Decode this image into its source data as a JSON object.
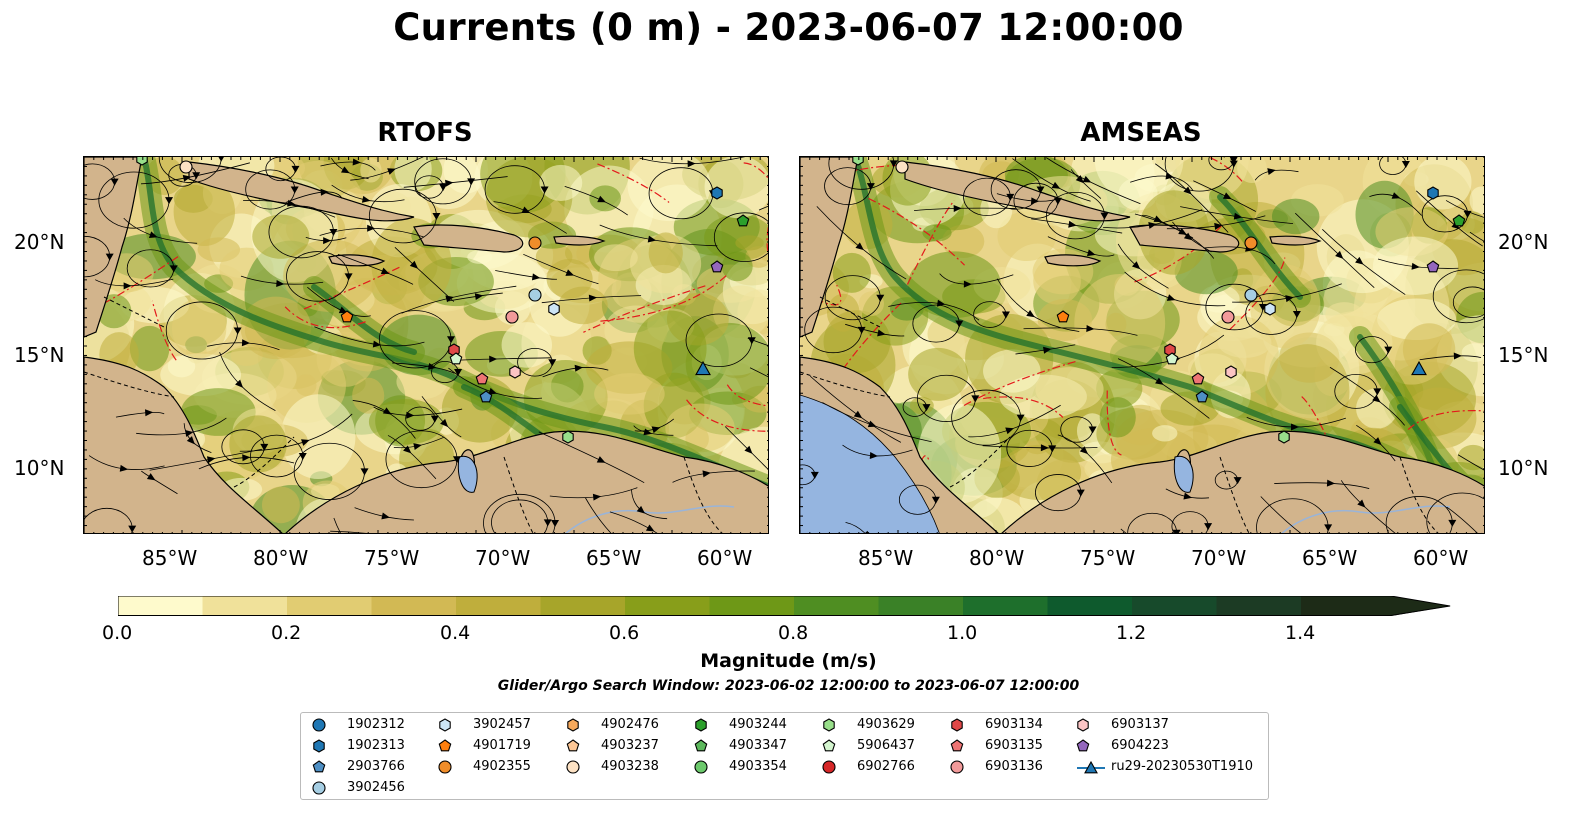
{
  "title": "Currents (0 m) - 2023-06-07 12:00:00",
  "panels": [
    {
      "name": "RTOFS"
    },
    {
      "name": "AMSEAS"
    }
  ],
  "axes": {
    "x_labels": [
      "85°W",
      "80°W",
      "75°W",
      "70°W",
      "65°W",
      "60°W"
    ],
    "y_labels": [
      "20°N",
      "15°N",
      "10°N"
    ]
  },
  "colorbar": {
    "ticks": [
      "0.0",
      "0.2",
      "0.4",
      "0.6",
      "0.8",
      "1.0",
      "1.2",
      "1.4"
    ],
    "label": "Magnitude (m/s)",
    "colors": [
      "#fefacc",
      "#f0e19a",
      "#e1cc72",
      "#d2b954",
      "#bfae3c",
      "#a7a52a",
      "#889e1a",
      "#6e9817",
      "#4f8e22",
      "#3a8127",
      "#1e6f2c",
      "#0e5a2d",
      "#174a2b",
      "#1c3b24",
      "#1d2b17"
    ]
  },
  "search_window": "Glider/Argo Search Window: 2023-06-02 12:00:00 to 2023-06-07 12:00:00",
  "legend": [
    {
      "label": "1902312",
      "marker": "circle",
      "color": "#1f77b4"
    },
    {
      "label": "1902313",
      "marker": "hexagon",
      "color": "#1f77b4"
    },
    {
      "label": "2903766",
      "marker": "pentagon",
      "color": "#4e8fc4"
    },
    {
      "label": "3902456",
      "marker": "circle",
      "color": "#a6cee3"
    },
    {
      "label": "3902457",
      "marker": "hexagon",
      "color": "#cde5f5"
    },
    {
      "label": "4901719",
      "marker": "pentagon",
      "color": "#ff7f0e"
    },
    {
      "label": "4902355",
      "marker": "circle",
      "color": "#f08d2a"
    },
    {
      "label": "4902476",
      "marker": "hexagon",
      "color": "#f6a95c"
    },
    {
      "label": "4903237",
      "marker": "pentagon",
      "color": "#fdc796"
    },
    {
      "label": "4903238",
      "marker": "circle",
      "color": "#fde2c4"
    },
    {
      "label": "4903244",
      "marker": "hexagon",
      "color": "#2ca02c"
    },
    {
      "label": "4903347",
      "marker": "pentagon",
      "color": "#5cb85c"
    },
    {
      "label": "4903354",
      "marker": "circle",
      "color": "#6cc96c"
    },
    {
      "label": "4903629",
      "marker": "hexagon",
      "color": "#98df8a"
    },
    {
      "label": "5906437",
      "marker": "pentagon",
      "color": "#d4f5cf"
    },
    {
      "label": "6902766",
      "marker": "circle",
      "color": "#d62728"
    },
    {
      "label": "6903134",
      "marker": "hexagon",
      "color": "#e04848"
    },
    {
      "label": "6903135",
      "marker": "pentagon",
      "color": "#ee7474"
    },
    {
      "label": "6903136",
      "marker": "circle",
      "color": "#f29a9a"
    },
    {
      "label": "6903137",
      "marker": "hexagon",
      "color": "#fbc4c4"
    },
    {
      "label": "6904223",
      "marker": "pentagon",
      "color": "#9467bd"
    },
    {
      "label": "ru29-20230530T1910",
      "marker": "triangle-line",
      "color": "#1f77b4"
    }
  ]
}
